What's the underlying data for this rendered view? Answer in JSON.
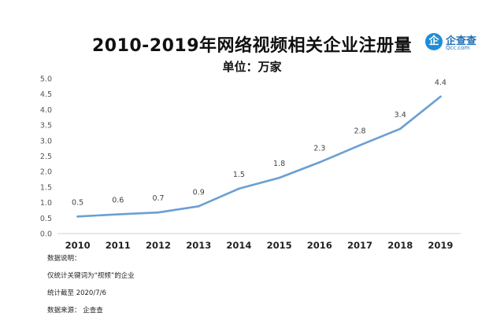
{
  "header": {
    "title": "2010-2019年网络视频相关企业注册量",
    "unit": "单位：万家"
  },
  "logo": {
    "name": "企查查",
    "domain": "Qcc.com",
    "mark": "企"
  },
  "notes": {
    "heading": "数据说明：",
    "line1": "仅统计关键词为“视频”的企业",
    "line2": "统计截至 2020/7/6",
    "line3": "数据来源：  企查查"
  },
  "chart_data": {
    "type": "line",
    "categories": [
      "2010",
      "2011",
      "2012",
      "2013",
      "2014",
      "2015",
      "2016",
      "2017",
      "2018",
      "2019"
    ],
    "values": [
      0.55,
      0.62,
      0.68,
      0.88,
      1.45,
      1.8,
      2.3,
      2.85,
      3.38,
      4.42
    ],
    "value_labels": [
      "0.5",
      "0.6",
      "0.7",
      "0.9",
      "1.5",
      "1.8",
      "2.3",
      "2.8",
      "3.4",
      "4.4"
    ],
    "yticks": [
      "0.0",
      "0.5",
      "1.0",
      "1.5",
      "2.0",
      "2.5",
      "3.0",
      "3.5",
      "4.0",
      "4.5",
      "5.0"
    ],
    "ylim": [
      0,
      5
    ],
    "line_color": "#6a9fd4",
    "grid": false,
    "legend": "none"
  }
}
